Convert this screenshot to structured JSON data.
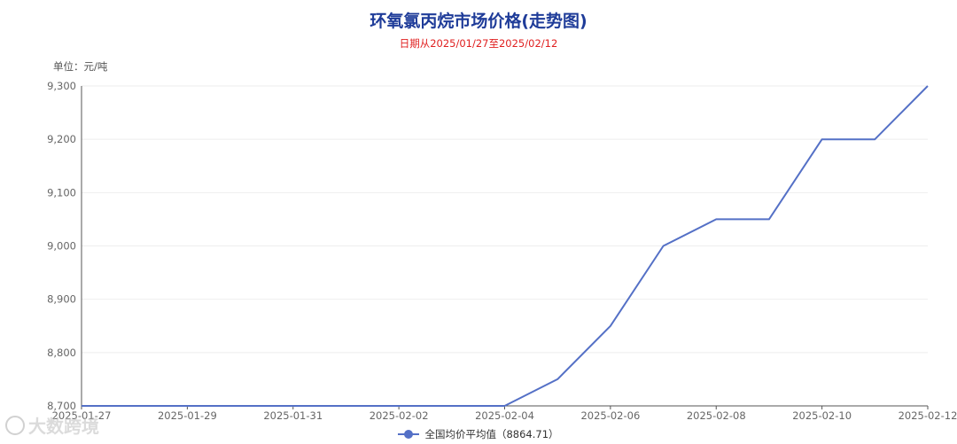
{
  "chart_data": {
    "type": "line",
    "title": "环氧氯丙烷市场价格(走势图)",
    "subtitle": "日期从2025/01/27至2025/02/12",
    "unit_label": "单位：元/吨",
    "x": [
      "2025-01-27",
      "2025-01-28",
      "2025-01-29",
      "2025-01-30",
      "2025-01-31",
      "2025-02-01",
      "2025-02-02",
      "2025-02-03",
      "2025-02-04",
      "2025-02-05",
      "2025-02-06",
      "2025-02-07",
      "2025-02-08",
      "2025-02-09",
      "2025-02-10",
      "2025-02-11",
      "2025-02-12"
    ],
    "x_tick_labels": [
      "2025-01-27",
      "2025-01-29",
      "2025-01-31",
      "2025-02-02",
      "2025-02-04",
      "2025-02-06",
      "2025-02-08",
      "2025-02-10",
      "2025-02-12"
    ],
    "series": [
      {
        "name": "全国均价平均值（8864.71）",
        "values": [
          8700,
          8700,
          8700,
          8700,
          8700,
          8700,
          8700,
          8700,
          8700,
          8750,
          8850,
          9000,
          9050,
          9050,
          9200,
          9200,
          9300
        ],
        "color": "#5470c6"
      }
    ],
    "ylim": [
      8700,
      9300
    ],
    "y_ticks": [
      8700,
      8800,
      8900,
      9000,
      9100,
      9200,
      9300
    ],
    "y_tick_labels": [
      "8,700",
      "8,800",
      "8,900",
      "9,000",
      "9,100",
      "9,200",
      "9,300"
    ],
    "grid": true,
    "legend_position": "bottom-center"
  },
  "watermark": "大数跨境"
}
